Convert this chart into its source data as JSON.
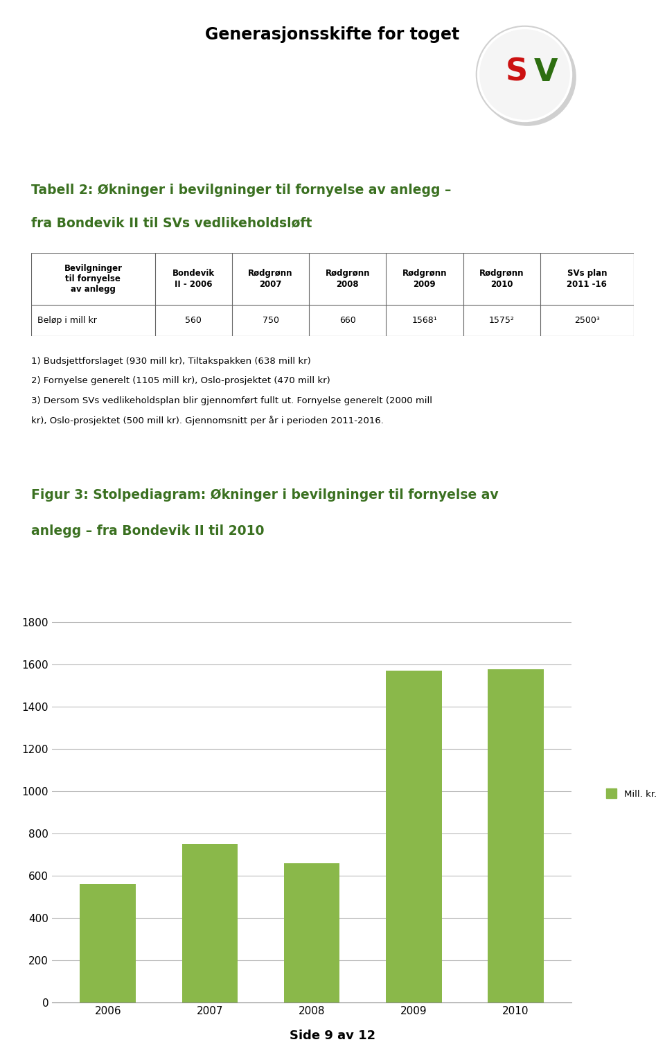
{
  "page_title": "Generasjonsskifte for toget",
  "table_title_line1": "Tabell 2: Økninger i bevilgninger til fornyelse av anlegg –",
  "table_title_line2": "fra Bondevik II til SVs vedlikeholdsløft",
  "table_headers": [
    "Bevilgninger\ntil fornyelse\nav anlegg",
    "Bondevik\nII - 2006",
    "Rødgrønn\n2007",
    "Rødgrønn\n2008",
    "Rødgrønn\n2009",
    "Rødgrønn\n2010",
    "SVs plan\n2011 -16"
  ],
  "table_row_label": "Beløp i mill kr",
  "table_values": [
    "560",
    "750",
    "660",
    "1568¹",
    "1575²",
    "2500³"
  ],
  "footnote1": "1) Budsjettforslaget (930 mill kr), Tiltakspakken (638 mill kr)",
  "footnote2": "2) Fornyelse generelt (1105 mill kr), Oslo-prosjektet (470 mill kr)",
  "footnote3": "3) Dersom SVs vedlikeholdsplan blir gjennomført fullt ut. Fornyelse generelt (2000 mill",
  "footnote4": "kr), Oslo-prosjektet (500 mill kr). Gjennomsnitt per år i perioden 2011-2016.",
  "chart_title_line1": "Figur 3: Stolpediagram: Økninger i bevilgninger til fornyelse av",
  "chart_title_line2": "anlegg – fra Bondevik II til 2010",
  "chart_years": [
    "2006",
    "2007",
    "2008",
    "2009",
    "2010"
  ],
  "chart_values": [
    560,
    750,
    660,
    1568,
    1575
  ],
  "bar_color": "#8ab84a",
  "legend_label": "Mill. kr.",
  "y_ticks": [
    0,
    200,
    400,
    600,
    800,
    1000,
    1200,
    1400,
    1600,
    1800
  ],
  "y_max": 1900,
  "footer_text": "Side 9 av 12",
  "header_green": "#3a7020",
  "border_color": "#666666",
  "background_color": "#ffffff",
  "grid_color": "#bbbbbb"
}
